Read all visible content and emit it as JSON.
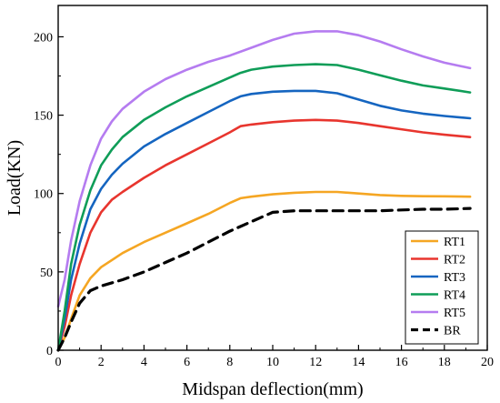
{
  "chart_data": {
    "type": "line",
    "title": "",
    "xlabel": "Midspan deflection(mm)",
    "ylabel": "Load(KN)",
    "xlim": [
      0,
      20
    ],
    "ylim": [
      0,
      220
    ],
    "xticks": [
      0,
      2,
      4,
      6,
      8,
      10,
      12,
      14,
      16,
      18,
      20
    ],
    "yticks": [
      0,
      50,
      100,
      150,
      200
    ],
    "grid": false,
    "legend_position": "bottom-right",
    "series": [
      {
        "name": "RT1",
        "color": "#f5a623",
        "dash": "solid",
        "x": [
          0,
          0.3,
          0.6,
          1.0,
          1.5,
          2.0,
          3.0,
          4.0,
          5.0,
          6.0,
          7.0,
          8.0,
          8.5,
          9.0,
          10.0,
          11.0,
          12.0,
          13.0,
          14.0,
          15.0,
          16.0,
          17.0,
          18.0,
          19.2
        ],
        "y": [
          0,
          8,
          20,
          35,
          46,
          53,
          62,
          69,
          75,
          81,
          87,
          94,
          97,
          98,
          99.5,
          100.5,
          101,
          101,
          100,
          99,
          98.5,
          98.3,
          98.2,
          98
        ]
      },
      {
        "name": "RT2",
        "color": "#e8352e",
        "dash": "solid",
        "x": [
          0,
          0.3,
          0.6,
          1.0,
          1.5,
          2.0,
          2.5,
          3.0,
          4.0,
          5.0,
          6.0,
          7.0,
          8.0,
          8.5,
          9.0,
          10.0,
          11.0,
          12.0,
          13.0,
          14.0,
          15.0,
          16.0,
          17.0,
          18.0,
          19.2
        ],
        "y": [
          0,
          15,
          35,
          55,
          75,
          88,
          96,
          101,
          110,
          118,
          125,
          132,
          139,
          143,
          144,
          145.5,
          146.5,
          147,
          146.5,
          145,
          143,
          141,
          139,
          137.5,
          136
        ]
      },
      {
        "name": "RT3",
        "color": "#1565c0",
        "dash": "solid",
        "x": [
          0,
          0.3,
          0.6,
          1.0,
          1.5,
          2.0,
          2.5,
          3.0,
          4.0,
          5.0,
          6.0,
          7.0,
          8.0,
          8.5,
          9.0,
          10.0,
          11.0,
          12.0,
          13.0,
          14.0,
          15.0,
          16.0,
          17.0,
          18.0,
          19.2
        ],
        "y": [
          0,
          20,
          45,
          68,
          90,
          103,
          112,
          119,
          130,
          138,
          145,
          152,
          159,
          162,
          163.5,
          165,
          165.5,
          165.5,
          164,
          160,
          156,
          153,
          151,
          149.5,
          148
        ]
      },
      {
        "name": "RT4",
        "color": "#0f9d58",
        "dash": "solid",
        "x": [
          0,
          0.3,
          0.6,
          1.0,
          1.5,
          2.0,
          2.5,
          3.0,
          4.0,
          5.0,
          6.0,
          7.0,
          8.0,
          8.5,
          9.0,
          9.5,
          10.0,
          11.0,
          12.0,
          13.0,
          14.0,
          15.0,
          16.0,
          17.0,
          18.0,
          19.2
        ],
        "y": [
          0,
          25,
          55,
          80,
          102,
          118,
          128,
          136,
          147,
          155,
          162,
          168,
          174,
          177,
          179,
          180,
          181,
          182,
          182.5,
          182,
          179,
          175.5,
          172,
          169,
          167,
          164.5
        ]
      },
      {
        "name": "RT5",
        "color": "#b57cf0",
        "dash": "solid",
        "x": [
          0,
          0.3,
          0.6,
          1.0,
          1.5,
          2.0,
          2.5,
          3.0,
          4.0,
          5.0,
          6.0,
          7.0,
          8.0,
          9.0,
          10.0,
          11.0,
          12.0,
          13.0,
          14.0,
          15.0,
          16.0,
          17.0,
          18.0,
          19.2
        ],
        "y": [
          28,
          45,
          70,
          95,
          118,
          135,
          146,
          154,
          165,
          173,
          179,
          184,
          188,
          193,
          198,
          202,
          203.5,
          203.5,
          201,
          197,
          192,
          187.5,
          183.5,
          180
        ]
      },
      {
        "name": "BR",
        "color": "#000000",
        "dash": "dashed",
        "x": [
          0,
          0.3,
          0.6,
          1.0,
          1.5,
          2.0,
          3.0,
          4.0,
          5.0,
          6.0,
          7.0,
          8.0,
          9.0,
          10.0,
          11.0,
          12.0,
          13.0,
          14.0,
          15.0,
          16.0,
          17.0,
          18.0,
          19.2
        ],
        "y": [
          0,
          8,
          18,
          30,
          38,
          41,
          45,
          50,
          56,
          62,
          69,
          76,
          82,
          88,
          89,
          89,
          89,
          89,
          89,
          89.5,
          90,
          90,
          90.5
        ]
      }
    ]
  }
}
